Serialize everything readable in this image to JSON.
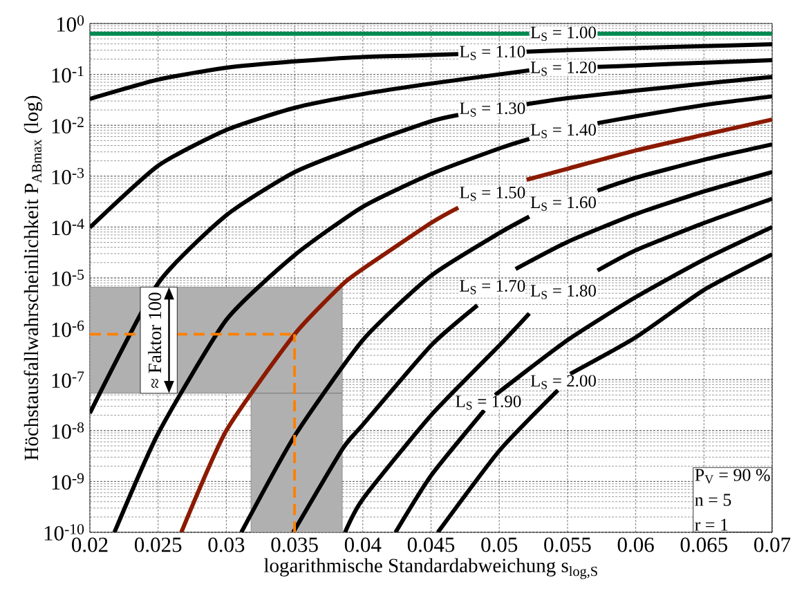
{
  "chart_data": {
    "type": "line",
    "xlabel": "logarithmische Standardabweichung s$_{log,S}$",
    "ylabel": "Höchstausfallwahrscheinlichkeit P$_{ABmax}$ (log)",
    "log": "y",
    "grid": true,
    "xlim": [
      0.02,
      0.07
    ],
    "ylim": [
      1e-10,
      1
    ],
    "xticks": [
      0.02,
      0.025,
      0.03,
      0.035,
      0.04,
      0.045,
      0.05,
      0.055,
      0.06,
      0.065,
      0.07
    ],
    "yticks": [
      {
        "value": 1e-10,
        "label": "10$^{-10}$"
      },
      {
        "value": 1e-09,
        "label": "10$^{-9}$"
      },
      {
        "value": 1e-08,
        "label": "10$^{-8}$"
      },
      {
        "value": 1e-07,
        "label": "10$^{-7}$"
      },
      {
        "value": 1e-06,
        "label": "10$^{-6}$"
      },
      {
        "value": 1e-05,
        "label": "10$^{-5}$"
      },
      {
        "value": 0.0001,
        "label": "10$^{-4}$"
      },
      {
        "value": 0.001,
        "label": "10$^{-3}$"
      },
      {
        "value": 0.01,
        "label": "10$^{-2}$"
      },
      {
        "value": 0.1,
        "label": "10$^{-1}$"
      },
      {
        "value": 1,
        "label": "10$^{0}$"
      }
    ],
    "series": [
      {
        "name": "L$_{S}$ = 1.00",
        "color": "#008a50",
        "x": [
          0.02,
          0.025,
          0.03,
          0.035,
          0.04,
          0.045,
          0.05,
          0.0522,
          0.0547,
          0.0572,
          0.06,
          0.065,
          0.07
        ],
        "values": [
          0.63,
          0.63,
          0.63,
          0.63,
          0.63,
          0.63,
          0.63,
          0.63,
          null,
          0.63,
          0.63,
          0.63,
          0.63
        ]
      },
      {
        "name": "L$_{S}$ = 1.10",
        "color": "#000000",
        "x": [
          0.02,
          0.025,
          0.03,
          0.035,
          0.04,
          0.045,
          0.047,
          0.0495,
          0.052,
          0.055,
          0.06,
          0.065,
          0.07
        ],
        "values": [
          0.033,
          0.079,
          0.135,
          0.18,
          0.22,
          0.24,
          0.25,
          null,
          0.28,
          0.3,
          0.33,
          0.36,
          0.39
        ]
      },
      {
        "name": "L$_{S}$ = 1.20",
        "color": "#000000",
        "x": [
          0.02,
          0.025,
          0.03,
          0.035,
          0.04,
          0.045,
          0.05,
          0.0522,
          0.0547,
          0.0572,
          0.06,
          0.065,
          0.07
        ],
        "values": [
          9.8e-05,
          0.0016,
          0.0081,
          0.022,
          0.041,
          0.066,
          0.1,
          0.12,
          null,
          0.14,
          0.15,
          0.17,
          0.19
        ]
      },
      {
        "name": "L$_{S}$ = 1.30",
        "color": "#000000",
        "x": [
          0.02,
          0.025,
          0.03,
          0.035,
          0.04,
          0.045,
          0.047,
          0.0495,
          0.052,
          0.055,
          0.06,
          0.065,
          0.07
        ],
        "values": [
          2.2e-08,
          7.8e-06,
          0.00017,
          0.0012,
          0.0041,
          0.012,
          0.016,
          null,
          0.026,
          0.034,
          0.048,
          0.066,
          0.089
        ]
      },
      {
        "name": "L$_{S}$ = 1.40",
        "color": "#000000",
        "x": [
          0.0218,
          0.025,
          0.03,
          0.035,
          0.04,
          0.045,
          0.05,
          0.0522,
          0.0547,
          0.0572,
          0.06,
          0.065,
          0.07
        ],
        "values": [
          1e-10,
          8.7e-09,
          1.5e-06,
          2.8e-05,
          0.00025,
          0.0011,
          0.0035,
          0.0054,
          null,
          0.011,
          0.015,
          0.025,
          0.037
        ]
      },
      {
        "name": "L$_{S}$ = 1.50",
        "color": "#8b1a00",
        "x": [
          0.0267,
          0.03,
          0.035,
          0.0385,
          0.04,
          0.045,
          0.047,
          0.0495,
          0.052,
          0.055,
          0.06,
          0.065,
          0.07
        ],
        "values": [
          1e-10,
          1e-08,
          7.8e-07,
          7.4e-06,
          1.5e-05,
          0.00012,
          0.00024,
          null,
          0.00085,
          0.0014,
          0.0032,
          0.0065,
          0.013
        ]
      },
      {
        "name": "L$_{S}$ = 1.60",
        "color": "#000000",
        "x": [
          0.0311,
          0.035,
          0.04,
          0.045,
          0.05,
          0.0522,
          0.0547,
          0.0572,
          0.06,
          0.065,
          0.07
        ],
        "values": [
          1e-10,
          7.8e-09,
          6e-07,
          1.1e-05,
          7.6e-05,
          0.00016,
          null,
          0.00052,
          0.00093,
          0.0021,
          0.0042
        ]
      },
      {
        "name": "L$_{S}$ = 1.70",
        "color": "#000000",
        "x": [
          0.0349,
          0.0385,
          0.04,
          0.045,
          0.0484,
          0.0495,
          0.0512,
          0.055,
          0.06,
          0.065,
          0.07
        ],
        "values": [
          1e-10,
          4.3e-09,
          1.3e-08,
          4.7e-07,
          2.9e-06,
          null,
          1.5e-05,
          5.1e-05,
          0.00018,
          0.0005,
          0.0012
        ]
      },
      {
        "name": "L$_{S}$ = 1.80",
        "color": "#000000",
        "x": [
          0.0387,
          0.04,
          0.045,
          0.05,
          0.0522,
          0.0547,
          0.0572,
          0.06,
          0.065,
          0.07
        ],
        "values": [
          1e-10,
          4.5e-10,
          2e-08,
          4.7e-07,
          2e-06,
          null,
          1.4e-05,
          3.5e-05,
          0.00012,
          0.00036
        ]
      },
      {
        "name": "L$_{S}$ = 1.90",
        "color": "#000000",
        "x": [
          0.0424,
          0.045,
          0.0489,
          0.0492,
          0.0497,
          0.055,
          0.06,
          0.065,
          0.07
        ],
        "values": [
          1e-10,
          1.3e-09,
          2.5e-08,
          null,
          5e-08,
          6e-07,
          4.2e-06,
          2.3e-05,
          0.0001
        ]
      },
      {
        "name": "L$_{S}$ = 2.00",
        "color": "#000000",
        "x": [
          0.0455,
          0.05,
          0.0543,
          0.0547,
          0.0552,
          0.06,
          0.065,
          0.07
        ],
        "values": [
          1e-10,
          4e-09,
          6.2e-08,
          null,
          1.3e-07,
          6.8e-07,
          5.8e-06,
          2.9e-05
        ]
      }
    ],
    "bands": [
      {
        "axis": "y",
        "from": 5.4e-08,
        "to": 6.6e-06,
        "color": "#b0b0b0"
      },
      {
        "axis": "x",
        "from": 0.0318,
        "to": 0.0385,
        "color": "#b0b0b0"
      }
    ],
    "ref_lines": [
      {
        "axis": "y",
        "value": 7.8e-07,
        "color": "#ff8000",
        "line_style": "dashed"
      },
      {
        "axis": "x",
        "value": 0.035,
        "color": "#ff8000",
        "line_style": "dashed"
      }
    ],
    "annotations": [
      "≈ Faktor 100",
      "P$_{V}$ = 90 %",
      "n = 5",
      "r = 1"
    ]
  }
}
